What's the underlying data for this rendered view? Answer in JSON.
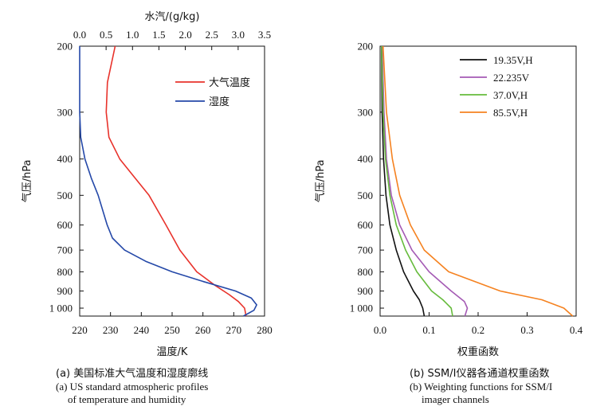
{
  "chart_data": [
    {
      "id": "a",
      "type": "line",
      "title": "",
      "xlabel": "温度/K",
      "x2label": "水汽/(g/kg)",
      "ylabel": "气压/hPa",
      "xlim": [
        220,
        280
      ],
      "x2lim": [
        0,
        3.5
      ],
      "ylim": [
        1050,
        200
      ],
      "yscale": "log",
      "xticks": [
        220,
        230,
        240,
        250,
        260,
        270,
        280
      ],
      "x2ticks": [
        "0.0",
        "0.5",
        "1.0",
        "1.5",
        "2.0",
        "2.5",
        "3.0",
        "3.5"
      ],
      "yticks": [
        200,
        300,
        400,
        500,
        600,
        700,
        800,
        900,
        1000
      ],
      "yticklabels": [
        "200",
        "300",
        "400",
        "500",
        "600",
        "700",
        "800",
        "900",
        "1 000"
      ],
      "legend": "top-right",
      "series": [
        {
          "name": "大气温度",
          "color": "#e8322b",
          "axis": "bottom",
          "points": [
            [
              231.5,
              200
            ],
            [
              229,
              250
            ],
            [
              228.6,
              300
            ],
            [
              229.5,
              350
            ],
            [
              233,
              400
            ],
            [
              238,
              450
            ],
            [
              242.5,
              500
            ],
            [
              248,
              600
            ],
            [
              252.5,
              700
            ],
            [
              258,
              800
            ],
            [
              264,
              870
            ],
            [
              268.5,
              920
            ],
            [
              271.5,
              960
            ],
            [
              273.5,
              1000
            ],
            [
              274,
              1050
            ]
          ]
        },
        {
          "name": "湿度",
          "color": "#2448a8",
          "axis": "top",
          "points": [
            [
              0.0,
              200
            ],
            [
              0.0,
              300
            ],
            [
              0.02,
              350
            ],
            [
              0.1,
              400
            ],
            [
              0.22,
              450
            ],
            [
              0.35,
              500
            ],
            [
              0.52,
              600
            ],
            [
              0.62,
              650
            ],
            [
              0.85,
              700
            ],
            [
              1.25,
              750
            ],
            [
              1.75,
              800
            ],
            [
              2.35,
              850
            ],
            [
              2.95,
              900
            ],
            [
              3.25,
              940
            ],
            [
              3.35,
              980
            ],
            [
              3.3,
              1013
            ],
            [
              3.1,
              1050
            ]
          ]
        }
      ]
    },
    {
      "id": "b",
      "type": "line",
      "title": "",
      "xlabel": "权重函数",
      "ylabel": "气压/hPa",
      "xlim": [
        0,
        0.4
      ],
      "ylim": [
        1050,
        200
      ],
      "yscale": "log",
      "xticks": [
        "0.0",
        "0.1",
        "0.2",
        "0.3",
        "0.4"
      ],
      "yticks": [
        200,
        300,
        400,
        500,
        600,
        700,
        800,
        900,
        1000
      ],
      "yticklabels": [
        "200",
        "300",
        "400",
        "500",
        "600",
        "700",
        "800",
        "900",
        "1 000"
      ],
      "legend": "top-right",
      "series": [
        {
          "name": "19.35V,H",
          "color": "#111111",
          "points": [
            [
              0.003,
              200
            ],
            [
              0.004,
              300
            ],
            [
              0.007,
              400
            ],
            [
              0.012,
              500
            ],
            [
              0.02,
              600
            ],
            [
              0.033,
              700
            ],
            [
              0.048,
              800
            ],
            [
              0.068,
              900
            ],
            [
              0.08,
              950
            ],
            [
              0.087,
              1000
            ],
            [
              0.09,
              1050
            ]
          ]
        },
        {
          "name": "22.235V",
          "color": "#a45ab4",
          "points": [
            [
              0.004,
              200
            ],
            [
              0.008,
              300
            ],
            [
              0.013,
              400
            ],
            [
              0.023,
              500
            ],
            [
              0.04,
              600
            ],
            [
              0.065,
              700
            ],
            [
              0.1,
              800
            ],
            [
              0.145,
              900
            ],
            [
              0.172,
              960
            ],
            [
              0.178,
              1000
            ],
            [
              0.173,
              1050
            ]
          ]
        },
        {
          "name": "37.0V,H",
          "color": "#66bb3c",
          "points": [
            [
              0.003,
              200
            ],
            [
              0.006,
              300
            ],
            [
              0.011,
              400
            ],
            [
              0.02,
              500
            ],
            [
              0.033,
              600
            ],
            [
              0.052,
              700
            ],
            [
              0.075,
              800
            ],
            [
              0.105,
              900
            ],
            [
              0.128,
              950
            ],
            [
              0.145,
              1000
            ],
            [
              0.148,
              1050
            ]
          ]
        },
        {
          "name": "85.5V,H",
          "color": "#f58220",
          "points": [
            [
              0.006,
              200
            ],
            [
              0.013,
              300
            ],
            [
              0.025,
              400
            ],
            [
              0.04,
              500
            ],
            [
              0.062,
              600
            ],
            [
              0.09,
              700
            ],
            [
              0.14,
              800
            ],
            [
              0.245,
              900
            ],
            [
              0.33,
              950
            ],
            [
              0.375,
              1000
            ],
            [
              0.393,
              1050
            ]
          ]
        }
      ]
    }
  ],
  "captions": {
    "a": {
      "cn": "(a) 美国标准大气温度和湿度廓线",
      "en1": "(a) US standard atmospheric profiles",
      "en2": "of temperature and humidity"
    },
    "b": {
      "cn": "(b) SSM/I仪器各通道权重函数",
      "en1": "(b) Weighting functions for SSM/I",
      "en2": "imager channels"
    }
  }
}
